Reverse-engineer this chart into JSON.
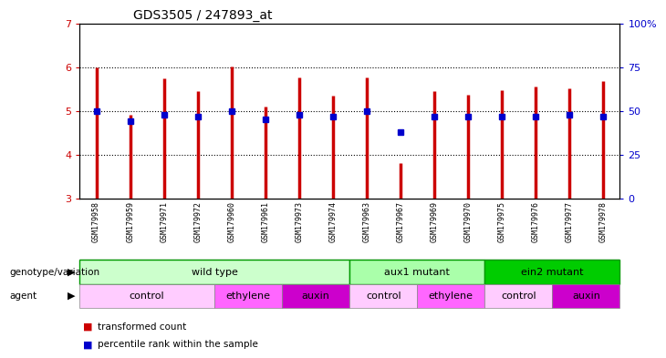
{
  "title": "GDS3505 / 247893_at",
  "samples": [
    "GSM179958",
    "GSM179959",
    "GSM179971",
    "GSM179972",
    "GSM179960",
    "GSM179961",
    "GSM179973",
    "GSM179974",
    "GSM179963",
    "GSM179967",
    "GSM179969",
    "GSM179970",
    "GSM179975",
    "GSM179976",
    "GSM179977",
    "GSM179978"
  ],
  "red_values": [
    6.0,
    4.93,
    5.75,
    5.47,
    6.03,
    5.1,
    5.78,
    5.35,
    5.78,
    3.82,
    5.47,
    5.37,
    5.48,
    5.57,
    5.53,
    5.7
  ],
  "blue_values": [
    5.0,
    4.78,
    4.93,
    4.87,
    5.0,
    4.82,
    4.93,
    4.87,
    5.0,
    4.52,
    4.87,
    4.87,
    4.87,
    4.87,
    4.93,
    4.87
  ],
  "ymin": 3.0,
  "ymax": 7.0,
  "yticks": [
    3,
    4,
    5,
    6,
    7
  ],
  "right_yticks": [
    0,
    25,
    50,
    75,
    100
  ],
  "genotype_groups": [
    {
      "label": "wild type",
      "start": 0,
      "end": 8,
      "color": "#ccffcc",
      "border_color": "#009900"
    },
    {
      "label": "aux1 mutant",
      "start": 8,
      "end": 12,
      "color": "#aaffaa",
      "border_color": "#009900"
    },
    {
      "label": "ein2 mutant",
      "start": 12,
      "end": 16,
      "color": "#00cc00",
      "border_color": "#009900"
    }
  ],
  "agent_groups": [
    {
      "label": "control",
      "start": 0,
      "end": 4,
      "color": "#ffccff"
    },
    {
      "label": "ethylene",
      "start": 4,
      "end": 6,
      "color": "#ff66ff"
    },
    {
      "label": "auxin",
      "start": 6,
      "end": 8,
      "color": "#cc00cc"
    },
    {
      "label": "control",
      "start": 8,
      "end": 10,
      "color": "#ffccff"
    },
    {
      "label": "ethylene",
      "start": 10,
      "end": 12,
      "color": "#ff66ff"
    },
    {
      "label": "control",
      "start": 12,
      "end": 14,
      "color": "#ffccff"
    },
    {
      "label": "auxin",
      "start": 14,
      "end": 16,
      "color": "#cc00cc"
    }
  ],
  "red_color": "#cc0000",
  "blue_color": "#0000cc",
  "background_color": "#ffffff",
  "grid_color": "#000000",
  "right_tick_labels": [
    "0",
    "25",
    "50",
    "75",
    "100%"
  ]
}
